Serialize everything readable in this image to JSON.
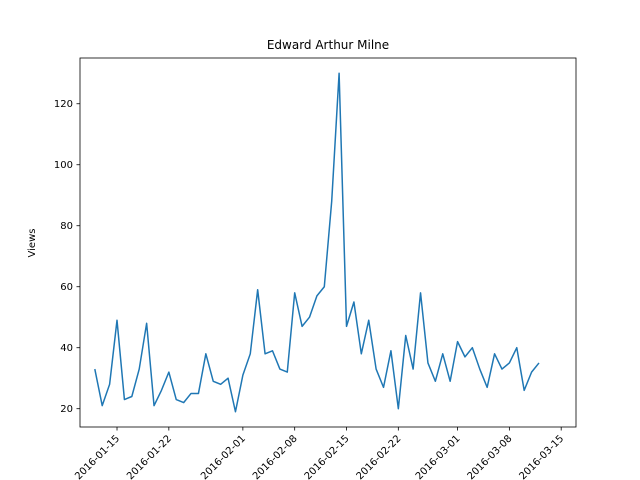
{
  "chart_data": {
    "type": "line",
    "title": "Edward Arthur Milne",
    "xlabel": "",
    "ylabel": "Views",
    "grid": false,
    "legend": "none",
    "ylim": [
      14,
      135
    ],
    "xlim": [
      "2016-01-10",
      "2016-03-17"
    ],
    "y_ticks": [
      20,
      40,
      60,
      80,
      100,
      120
    ],
    "x_tick_dates": [
      "2016-01-15",
      "2016-01-22",
      "2016-02-01",
      "2016-02-08",
      "2016-02-15",
      "2016-02-22",
      "2016-03-01",
      "2016-03-08",
      "2016-03-15"
    ],
    "x_tick_labels": [
      "2016-01-15",
      "2016-01-22",
      "2016-02-01",
      "2016-02-08",
      "2016-02-15",
      "2016-02-22",
      "2016-03-01",
      "2016-03-08",
      "2016-03-15"
    ],
    "line_color": "#1f77b4",
    "series": [
      {
        "x": [
          "2016-01-12",
          "2016-01-13",
          "2016-01-14",
          "2016-01-15",
          "2016-01-16",
          "2016-01-17",
          "2016-01-18",
          "2016-01-19",
          "2016-01-20",
          "2016-01-21",
          "2016-01-22",
          "2016-01-23",
          "2016-01-24",
          "2016-01-25",
          "2016-01-26",
          "2016-01-27",
          "2016-01-28",
          "2016-01-29",
          "2016-01-30",
          "2016-01-31",
          "2016-02-01",
          "2016-02-02",
          "2016-02-03",
          "2016-02-04",
          "2016-02-05",
          "2016-02-06",
          "2016-02-07",
          "2016-02-08",
          "2016-02-09",
          "2016-02-10",
          "2016-02-11",
          "2016-02-12",
          "2016-02-13",
          "2016-02-14",
          "2016-02-15",
          "2016-02-16",
          "2016-02-17",
          "2016-02-18",
          "2016-02-19",
          "2016-02-20",
          "2016-02-21",
          "2016-02-22",
          "2016-02-23",
          "2016-02-24",
          "2016-02-25",
          "2016-02-26",
          "2016-02-27",
          "2016-02-28",
          "2016-02-29",
          "2016-03-01",
          "2016-03-02",
          "2016-03-03",
          "2016-03-04",
          "2016-03-05",
          "2016-03-06",
          "2016-03-07",
          "2016-03-08",
          "2016-03-09",
          "2016-03-10",
          "2016-03-11",
          "2016-03-12"
        ],
        "values": [
          33,
          21,
          28,
          49,
          23,
          24,
          33,
          48,
          21,
          26,
          32,
          23,
          22,
          25,
          25,
          38,
          29,
          28,
          30,
          19,
          31,
          38,
          59,
          38,
          39,
          33,
          32,
          58,
          47,
          50,
          57,
          60,
          88,
          130,
          47,
          55,
          38,
          49,
          33,
          27,
          39,
          20,
          44,
          33,
          58,
          35,
          29,
          38,
          29,
          42,
          37,
          40,
          33,
          27,
          38,
          33,
          35,
          40,
          26,
          32,
          35
        ]
      }
    ]
  }
}
